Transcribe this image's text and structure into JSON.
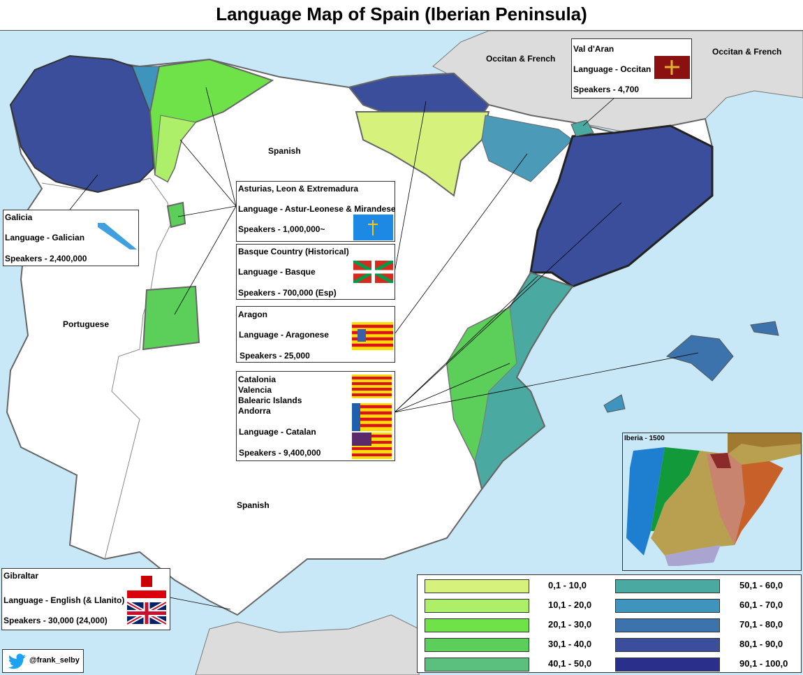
{
  "title": "Language Map of Spain (Iberian Peninsula)",
  "map_labels": {
    "france_west": "Occitan & French",
    "france_east": "Occitan & French",
    "spanish_north": "Spanish",
    "spanish_south": "Spanish",
    "portuguese": "Portuguese"
  },
  "info_boxes": {
    "val_d_aran": {
      "region": "Val d'Aran",
      "language": "Language - Occitan",
      "speakers": "Speakers - 4,700"
    },
    "galicia": {
      "region": "Galicia",
      "language": "Language - Galician",
      "speakers": "Speakers - 2,400,000"
    },
    "asturias": {
      "region": "Asturias, Leon & Extremadura",
      "language": "Language - Astur-Leonese & Mirandese",
      "speakers": "Speakers - 1,000,000~"
    },
    "basque": {
      "region": "Basque Country (Historical)",
      "language": "Language - Basque",
      "speakers": "Speakers - 700,000 (Esp)"
    },
    "aragon": {
      "region": "Aragon",
      "language": "Language - Aragonese",
      "speakers": "Speakers - 25,000"
    },
    "catalan": {
      "regions": [
        "Catalonia",
        "Valencia",
        "Balearic Islands",
        "Andorra"
      ],
      "language": "Language - Catalan",
      "speakers": "Speakers - 9,400,000"
    },
    "gibraltar": {
      "region": "Gibraltar",
      "language": "Language - English (& Llanito)",
      "speakers": "Speakers - 30,000 (24,000)"
    }
  },
  "inset": {
    "title": "Iberia - 1500"
  },
  "legend": {
    "items": [
      {
        "label": "0,1 - 10,0",
        "color": "#d7f27c"
      },
      {
        "label": "10,1 - 20,0",
        "color": "#aeef6a"
      },
      {
        "label": "20,1 - 30,0",
        "color": "#6fe24a"
      },
      {
        "label": "30,1 - 40,0",
        "color": "#5ccf5a"
      },
      {
        "label": "40,1 - 50,0",
        "color": "#5bbf7e"
      },
      {
        "label": "50,1 - 60,0",
        "color": "#4aa9a0"
      },
      {
        "label": "60,1 - 70,0",
        "color": "#3f94bd"
      },
      {
        "label": "70,1 - 80,0",
        "color": "#3c73ad"
      },
      {
        "label": "80,1 - 90,0",
        "color": "#3b4e9c"
      },
      {
        "label": "90,1 - 100,0",
        "color": "#2b2f8c"
      }
    ]
  },
  "credit": "@frank_selby"
}
